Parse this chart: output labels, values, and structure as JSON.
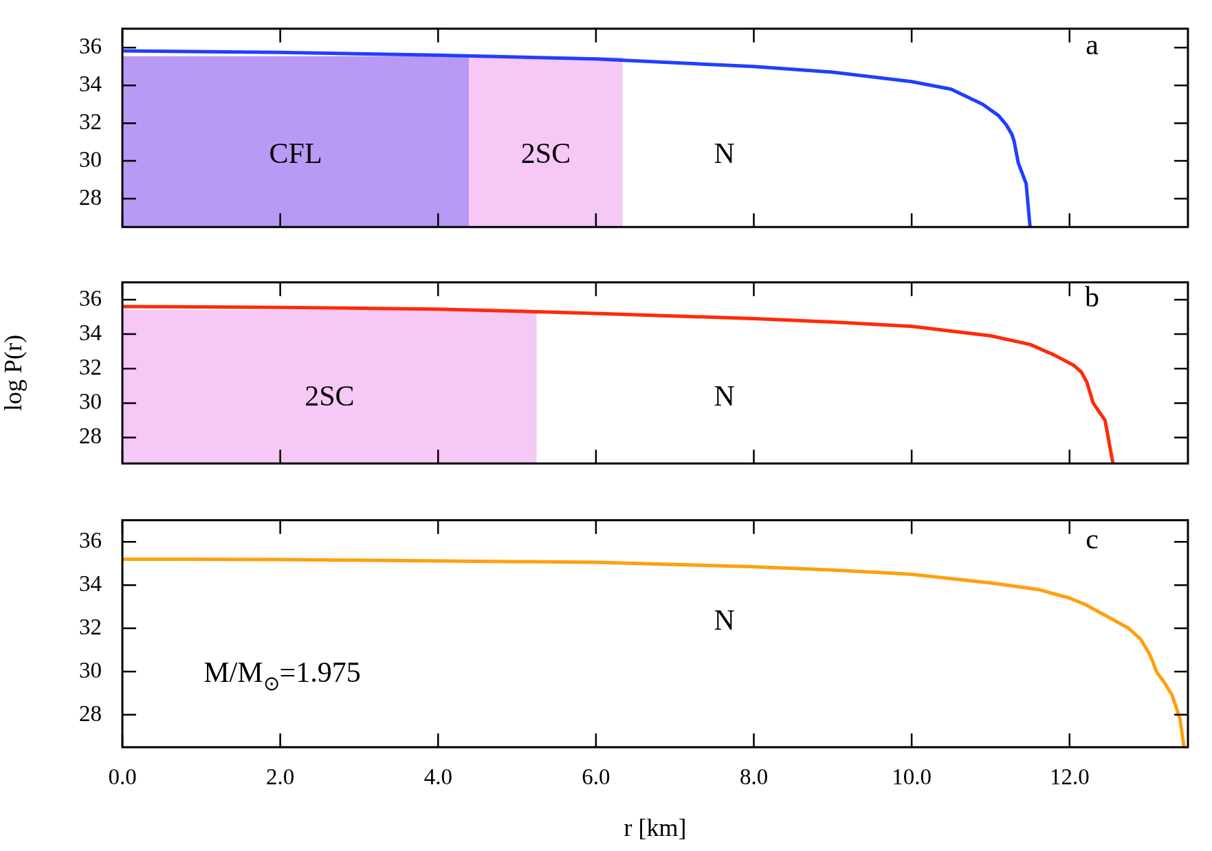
{
  "chart_data": [
    {
      "type": "line",
      "xlim": [
        0,
        13.5
      ],
      "ylim": [
        26.5,
        37
      ],
      "yticks": [
        28,
        30,
        32,
        34,
        36
      ],
      "xticks": [
        0,
        2,
        4,
        6,
        8,
        10,
        12
      ],
      "tick_labels": "y",
      "series": [
        {
          "type": "area",
          "name": "CFL",
          "color": "#b89af5",
          "x": [
            0,
            4.39
          ],
          "values": [
            35.55,
            35.55
          ]
        },
        {
          "type": "area",
          "name": "2SC",
          "color": "#f6c8f5",
          "x": [
            4.39,
            6.34
          ],
          "values": [
            35.5,
            35.5
          ]
        },
        {
          "type": "line",
          "color": "#1f3fff",
          "x": [
            0,
            2,
            4,
            6,
            8,
            9,
            10,
            10.5,
            10.9,
            11.1,
            11.2,
            11.27,
            11.3,
            11.35,
            11.45,
            11.5
          ],
          "values": [
            35.83,
            35.75,
            35.6,
            35.4,
            35.0,
            34.7,
            34.2,
            33.8,
            33.0,
            32.4,
            31.9,
            31.4,
            31.0,
            29.9,
            28.8,
            26.5
          ]
        }
      ],
      "annotations": [
        "N",
        "a"
      ]
    },
    {
      "type": "line",
      "xlim": [
        0,
        13.5
      ],
      "ylim": [
        26.5,
        37
      ],
      "yticks": [
        28,
        30,
        32,
        34,
        36
      ],
      "xticks": [
        0,
        2,
        4,
        6,
        8,
        10,
        12
      ],
      "tick_labels": "y",
      "ylabel": "log P(r)",
      "series": [
        {
          "type": "area",
          "name": "2SC",
          "color": "#f6c8f5",
          "x": [
            0,
            5.25
          ],
          "values": [
            35.4,
            35.4
          ]
        },
        {
          "type": "line",
          "color": "#ff2a0a",
          "x": [
            0,
            2,
            4,
            5.25,
            6,
            8,
            9,
            10,
            11,
            11.5,
            11.8,
            12.05,
            12.15,
            12.22,
            12.3,
            12.45,
            12.55
          ],
          "values": [
            35.6,
            35.55,
            35.45,
            35.3,
            35.2,
            34.9,
            34.7,
            34.45,
            33.9,
            33.4,
            32.8,
            32.2,
            31.8,
            31.2,
            30.0,
            29.0,
            26.5
          ]
        }
      ],
      "annotations": [
        "N",
        "b"
      ]
    },
    {
      "type": "line",
      "xlim": [
        0,
        13.5
      ],
      "ylim": [
        26.5,
        37
      ],
      "yticks": [
        28,
        30,
        32,
        34,
        36
      ],
      "xticks": [
        {
          "value": 0,
          "label": "0.0"
        },
        {
          "value": 2,
          "label": "2.0"
        },
        {
          "value": 4,
          "label": "4.0"
        },
        {
          "value": 6,
          "label": "6.0"
        },
        {
          "value": 8,
          "label": "8.0"
        },
        {
          "value": 10,
          "label": "10.0"
        },
        {
          "value": 12,
          "label": "12.0"
        }
      ],
      "xlabel": "r [km]",
      "series": [
        {
          "type": "line",
          "color": "#ffa010",
          "x": [
            0,
            2,
            4,
            6,
            8,
            9,
            10,
            11,
            11.6,
            12,
            12.2,
            12.5,
            12.75,
            12.9,
            13.0,
            13.05,
            13.1,
            13.2,
            13.3,
            13.4,
            13.45
          ],
          "values": [
            35.2,
            35.18,
            35.12,
            35.05,
            34.85,
            34.7,
            34.5,
            34.1,
            33.8,
            33.4,
            33.1,
            32.5,
            32.0,
            31.5,
            30.9,
            30.5,
            30.0,
            29.5,
            28.9,
            27.8,
            26.5
          ]
        }
      ],
      "annotations": [
        "N",
        "M/M$_{⊙}$=1.975",
        "c"
      ]
    }
  ]
}
